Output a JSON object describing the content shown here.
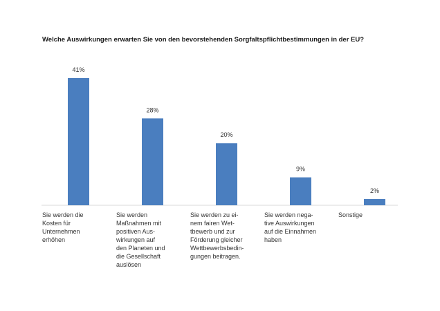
{
  "chart_data": {
    "type": "bar",
    "title": "Welche Auswirkungen erwarten Sie von den bevorstehenden Sorgfaltspflichtbestimmungen in der EU?",
    "xlabel": "",
    "ylabel": "",
    "ylim": [
      0,
      45
    ],
    "grid": false,
    "categories": [
      "Sie werden die\nKosten für\nUnternehmen\nerhöhen",
      "Sie werden\nMaßnahmen mit\npositiven Aus-\nwirkungen auf\nden Planeten und\ndie Gesellschaft\nauslösen",
      "Sie werden zu ei-\nnem fairen Wet-\ntbewerb und zur\nFörderung gleicher\nWettbewerbsbedin-\ngungen beitragen.",
      "Sie werden nega-\ntive Auswirkungen\nauf die Einnahmen\nhaben",
      "Sonstige"
    ],
    "values": [
      41,
      28,
      20,
      9,
      2
    ],
    "value_labels": [
      "41%",
      "28%",
      "20%",
      "9%",
      "2%"
    ],
    "bar_color": "#4a7ebf",
    "axis_color": "#d9d9d9"
  }
}
